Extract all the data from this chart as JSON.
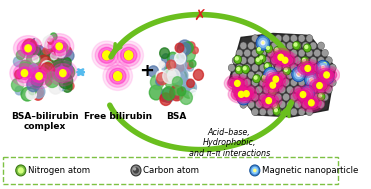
{
  "background_color": "#ffffff",
  "legend_border_color": "#7dc143",
  "legend_items": [
    {
      "label": "Nitrogen atom",
      "marker_color": "#7dc143",
      "marker_edge": "#3a7a10"
    },
    {
      "label": "Carbon atom",
      "marker_color": "#888888",
      "marker_edge": "#333333"
    },
    {
      "label": "Magnetic nanoparticle",
      "marker_color": "#4a90d9",
      "marker_edge": "#1a5599"
    }
  ],
  "labels": {
    "bsa_bilirubin": "BSA–bilirubin\ncomplex",
    "free_bilirubin": "Free bilirubin",
    "bsa": "BSA",
    "interactions": "Acid–base,\nHydrophobic,\nand π–π interactions"
  },
  "arrow_color": "#6abf1e",
  "double_arrow_color": "#55bbee",
  "cross_color": "#dd2222",
  "figsize": [
    3.71,
    1.89
  ],
  "dpi": 100
}
